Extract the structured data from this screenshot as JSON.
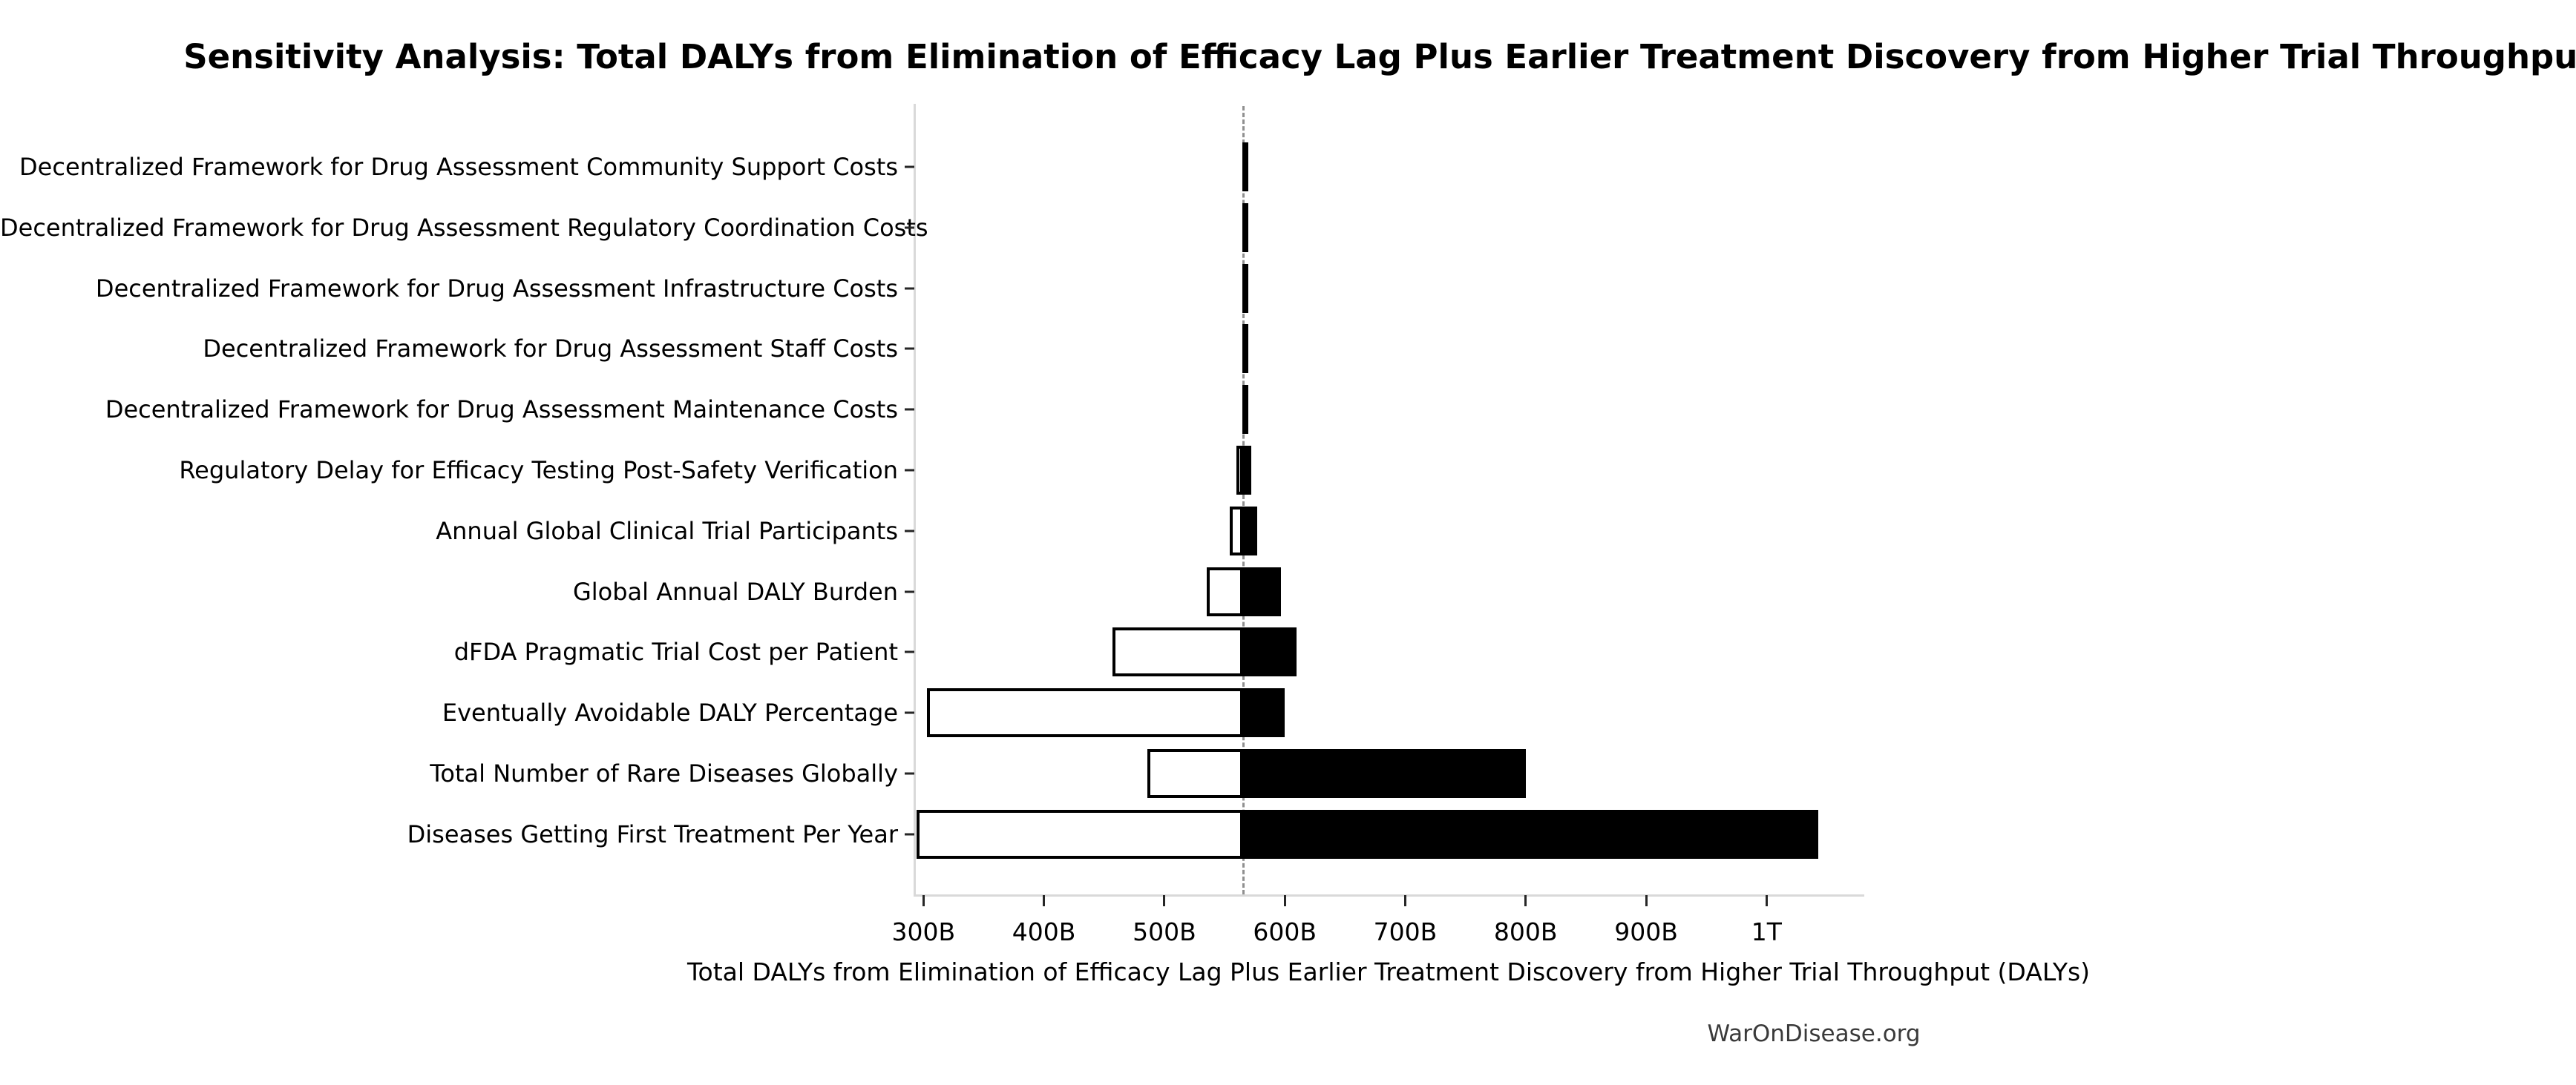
{
  "watermark": "WarOnDisease.org",
  "chart_data": {
    "type": "bar",
    "variant": "tornado-sensitivity",
    "title": "Sensitivity Analysis: Total DALYs from Elimination of Efficacy Lag Plus Earlier Treatment Discovery from Higher Trial Throughput",
    "xlabel": "Total DALYs from Elimination of Efficacy Lag Plus Earlier Treatment Discovery from Higher Trial Throughput (DALYs)",
    "ylabel": "",
    "unit": "DALYs",
    "grid": false,
    "legend": null,
    "base_value_billions": 565.4,
    "xlim_billions": [
      293,
      1079.3
    ],
    "x_ticks": [
      {
        "label": "300B",
        "value_billions": 300
      },
      {
        "label": "400B",
        "value_billions": 400
      },
      {
        "label": "500B",
        "value_billions": 500
      },
      {
        "label": "600B",
        "value_billions": 600
      },
      {
        "label": "700B",
        "value_billions": 700
      },
      {
        "label": "800B",
        "value_billions": 800
      },
      {
        "label": "900B",
        "value_billions": 900
      },
      {
        "label": "1T",
        "value_billions": 1000
      }
    ],
    "colors": {
      "low_bar_fill": "#ffffff",
      "high_bar_fill": "#000000",
      "bar_edge": "#000000",
      "base_line": "#909090",
      "axis_spine": "#d9d9d9",
      "text": "#000000",
      "watermark_text": "#3a3a3a"
    },
    "rows": [
      {
        "label": "Decentralized Framework for Drug Assessment Community Support Costs",
        "low_billions": 565,
        "high_billions": 566
      },
      {
        "label": "Decentralized Framework for Drug Assessment Regulatory Coordination Costs",
        "low_billions": 565,
        "high_billions": 566
      },
      {
        "label": "Decentralized Framework for Drug Assessment Infrastructure Costs",
        "low_billions": 565,
        "high_billions": 566
      },
      {
        "label": "Decentralized Framework for Drug Assessment Staff Costs",
        "low_billions": 565,
        "high_billions": 566
      },
      {
        "label": "Decentralized Framework for Drug Assessment Maintenance Costs",
        "low_billions": 565,
        "high_billions": 566
      },
      {
        "label": "Regulatory Delay for Efficacy Testing Post-Safety Verification",
        "low_billions": 560,
        "high_billions": 572
      },
      {
        "label": "Annual Global Clinical Trial Participants",
        "low_billions": 554,
        "high_billions": 577
      },
      {
        "label": "Global Annual DALY Burden",
        "low_billions": 535,
        "high_billions": 597
      },
      {
        "label": "dFDA Pragmatic Trial Cost per Patient",
        "low_billions": 457,
        "high_billions": 610
      },
      {
        "label": "Eventually Avoidable DALY Percentage",
        "low_billions": 303,
        "high_billions": 600
      },
      {
        "label": "Total Number of Rare Diseases Globally",
        "low_billions": 486,
        "high_billions": 800
      },
      {
        "label": "Diseases Getting First Treatment Per Year",
        "low_billions": 294,
        "high_billions": 1043
      }
    ]
  }
}
